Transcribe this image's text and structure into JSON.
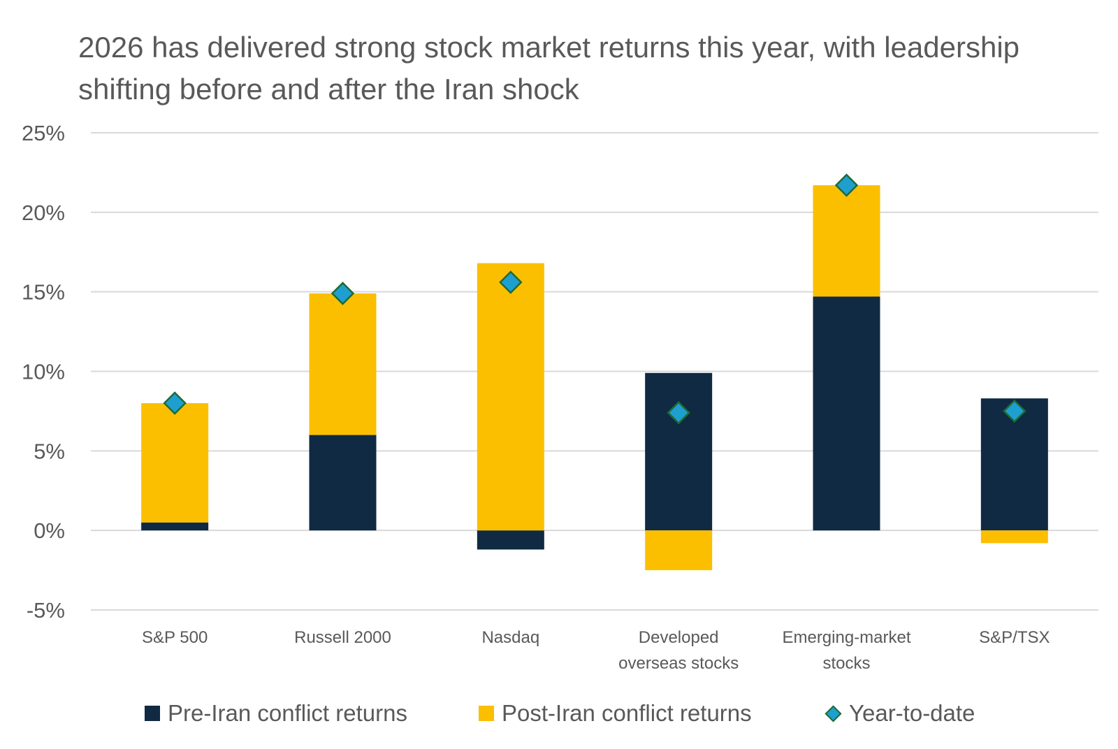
{
  "chart_data": {
    "type": "bar",
    "stacked": true,
    "title": "2026 has delivered strong stock market returns this year, with leadership shifting before and after the Iran shock",
    "xlabel": "",
    "ylabel": "",
    "ylim": [
      -5,
      25
    ],
    "yticks": [
      25,
      20,
      15,
      10,
      5,
      0,
      -5
    ],
    "ytick_labels": [
      "25%",
      "20%",
      "15%",
      "10%",
      "5%",
      "0%",
      "-5%"
    ],
    "grid": true,
    "categories": [
      [
        "S&P 500"
      ],
      [
        "Russell 2000"
      ],
      [
        "Nasdaq"
      ],
      [
        "Developed",
        "overseas stocks"
      ],
      [
        "Emerging-market",
        "stocks"
      ],
      [
        "S&P/TSX"
      ]
    ],
    "series": [
      {
        "name": "Pre-Iran conflict returns",
        "kind": "bar",
        "color": "#0f2a42",
        "values": [
          0.5,
          6.0,
          -1.2,
          9.9,
          14.7,
          8.3
        ]
      },
      {
        "name": "Post-Iran conflict returns",
        "kind": "bar",
        "color": "#fbbf00",
        "values": [
          7.5,
          8.9,
          16.8,
          -2.5,
          7.0,
          -0.8
        ]
      },
      {
        "name": "Year-to-date",
        "kind": "marker",
        "marker": "diamond",
        "color": "#1f9fd0",
        "edge_color": "#1e6b34",
        "values": [
          8.0,
          14.9,
          15.6,
          7.4,
          21.7,
          7.5
        ]
      }
    ],
    "legend_position": "bottom"
  }
}
